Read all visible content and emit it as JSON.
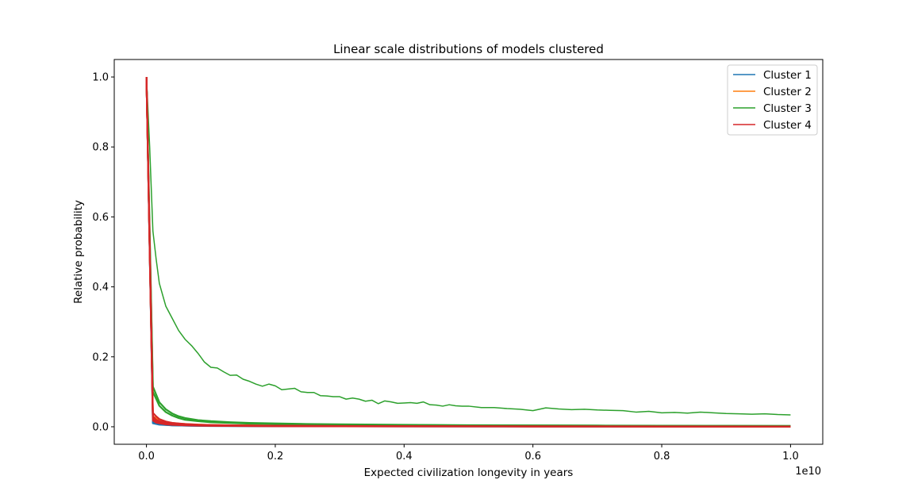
{
  "chart_data": {
    "type": "line",
    "title": "Linear scale distributions of models clustered",
    "xlabel": "Expected civilization longevity in years",
    "ylabel": "Relative probability",
    "x_offset_text": "1e10",
    "xlim": [
      -0.05,
      1.05
    ],
    "ylim": [
      -0.05,
      1.05
    ],
    "x_ticks": [
      0.0,
      0.2,
      0.4,
      0.6,
      0.8,
      1.0
    ],
    "x_tick_labels": [
      "0.0",
      "0.2",
      "0.4",
      "0.6",
      "0.8",
      "1.0"
    ],
    "y_ticks": [
      0.0,
      0.2,
      0.4,
      0.6,
      0.8,
      1.0
    ],
    "y_tick_labels": [
      "0.0",
      "0.2",
      "0.4",
      "0.6",
      "0.8",
      "1.0"
    ],
    "grid": false,
    "legend_position": "top-right",
    "x_unit_scale": 10000000000,
    "series": [
      {
        "name": "Cluster 1",
        "color": "#1f77b4",
        "lines": [
          {
            "x": [
              0,
              0.01,
              0.02,
              0.04,
              0.07,
              0.1,
              0.2,
              0.4,
              0.7,
              1.0
            ],
            "y": [
              1.0,
              0.01,
              0.006,
              0.004,
              0.003,
              0.002,
              0.0015,
              0.001,
              0.0008,
              0.0007
            ]
          },
          {
            "x": [
              0,
              0.01,
              0.02,
              0.04,
              0.07,
              0.1,
              0.2,
              0.4,
              0.7,
              1.0
            ],
            "y": [
              1.0,
              0.012,
              0.007,
              0.004,
              0.003,
              0.0025,
              0.0018,
              0.0012,
              0.0009,
              0.0008
            ]
          }
        ]
      },
      {
        "name": "Cluster 2",
        "color": "#ff7f0e",
        "lines": [
          {
            "x": [
              0,
              0.01,
              0.02,
              0.03,
              0.05,
              0.07,
              0.1,
              0.15,
              0.2,
              0.3,
              0.4,
              0.6,
              0.8,
              1.0
            ],
            "y": [
              1.0,
              0.03,
              0.018,
              0.013,
              0.009,
              0.007,
              0.005,
              0.004,
              0.003,
              0.0025,
              0.002,
              0.0015,
              0.0012,
              0.001
            ]
          },
          {
            "x": [
              0,
              0.01,
              0.02,
              0.03,
              0.05,
              0.07,
              0.1,
              0.15,
              0.2,
              0.3,
              0.4,
              0.6,
              0.8,
              1.0
            ],
            "y": [
              1.0,
              0.025,
              0.015,
              0.011,
              0.008,
              0.006,
              0.0045,
              0.0035,
              0.003,
              0.002,
              0.0018,
              0.0013,
              0.0011,
              0.0009
            ]
          }
        ]
      },
      {
        "name": "Cluster 3",
        "color": "#2ca02c",
        "lines": [
          {
            "x": [
              0,
              0.005,
              0.01,
              0.015,
              0.02,
              0.03,
              0.04,
              0.05,
              0.06,
              0.07,
              0.08,
              0.09,
              0.1,
              0.11,
              0.12,
              0.13,
              0.14,
              0.15,
              0.16,
              0.17,
              0.18,
              0.19,
              0.2,
              0.21,
              0.22,
              0.23,
              0.24,
              0.25,
              0.26,
              0.27,
              0.28,
              0.29,
              0.3,
              0.31,
              0.32,
              0.33,
              0.34,
              0.35,
              0.36,
              0.37,
              0.38,
              0.39,
              0.4,
              0.41,
              0.42,
              0.43,
              0.44,
              0.45,
              0.46,
              0.47,
              0.48,
              0.49,
              0.5,
              0.52,
              0.54,
              0.56,
              0.58,
              0.6,
              0.62,
              0.64,
              0.66,
              0.68,
              0.7,
              0.72,
              0.74,
              0.76,
              0.78,
              0.8,
              0.82,
              0.84,
              0.86,
              0.88,
              0.9,
              0.92,
              0.94,
              0.96,
              0.98,
              1.0
            ],
            "y": [
              1.0,
              0.8,
              0.56,
              0.48,
              0.41,
              0.345,
              0.31,
              0.275,
              0.25,
              0.232,
              0.21,
              0.185,
              0.17,
              0.168,
              0.157,
              0.147,
              0.148,
              0.136,
              0.13,
              0.122,
              0.116,
              0.122,
              0.117,
              0.106,
              0.108,
              0.11,
              0.1,
              0.098,
              0.098,
              0.089,
              0.088,
              0.086,
              0.086,
              0.079,
              0.082,
              0.079,
              0.073,
              0.076,
              0.066,
              0.074,
              0.071,
              0.067,
              0.068,
              0.069,
              0.067,
              0.071,
              0.063,
              0.062,
              0.059,
              0.063,
              0.06,
              0.059,
              0.059,
              0.055,
              0.055,
              0.052,
              0.05,
              0.046,
              0.054,
              0.051,
              0.049,
              0.05,
              0.048,
              0.047,
              0.046,
              0.042,
              0.044,
              0.04,
              0.041,
              0.039,
              0.042,
              0.04,
              0.038,
              0.037,
              0.036,
              0.037,
              0.035,
              0.034
            ]
          },
          {
            "x": [
              0,
              0.01,
              0.02,
              0.03,
              0.04,
              0.05,
              0.06,
              0.08,
              0.1,
              0.13,
              0.16,
              0.2,
              0.25,
              0.3,
              0.4,
              0.5,
              0.6,
              0.7,
              0.8,
              0.9,
              1.0
            ],
            "y": [
              1.0,
              0.115,
              0.07,
              0.05,
              0.038,
              0.03,
              0.025,
              0.019,
              0.016,
              0.013,
              0.011,
              0.0095,
              0.008,
              0.007,
              0.0055,
              0.0045,
              0.004,
              0.0035,
              0.003,
              0.0028,
              0.0025
            ]
          },
          {
            "x": [
              0,
              0.01,
              0.02,
              0.03,
              0.04,
              0.05,
              0.06,
              0.08,
              0.1,
              0.13,
              0.16,
              0.2,
              0.25,
              0.3,
              0.4,
              0.5,
              0.6,
              0.7,
              0.8,
              0.9,
              1.0
            ],
            "y": [
              1.0,
              0.1,
              0.06,
              0.042,
              0.032,
              0.025,
              0.02,
              0.016,
              0.013,
              0.011,
              0.009,
              0.008,
              0.007,
              0.006,
              0.005,
              0.004,
              0.0035,
              0.003,
              0.0027,
              0.0024,
              0.0022
            ]
          }
        ]
      },
      {
        "name": "Cluster 4",
        "color": "#d62728",
        "lines": [
          {
            "x": [
              0,
              0.01,
              0.015,
              0.02,
              0.03,
              0.04,
              0.06,
              0.08,
              0.1,
              0.15,
              0.2,
              0.3,
              0.4,
              0.6,
              0.8,
              1.0
            ],
            "y": [
              1.0,
              0.04,
              0.03,
              0.022,
              0.015,
              0.011,
              0.008,
              0.006,
              0.005,
              0.0035,
              0.003,
              0.0022,
              0.0018,
              0.0013,
              0.001,
              0.0009
            ]
          },
          {
            "x": [
              0,
              0.01,
              0.015,
              0.02,
              0.03,
              0.04,
              0.06,
              0.08,
              0.1,
              0.15,
              0.2,
              0.3,
              0.4,
              0.6,
              0.8,
              1.0
            ],
            "y": [
              1.0,
              0.03,
              0.02,
              0.016,
              0.012,
              0.009,
              0.0065,
              0.005,
              0.004,
              0.003,
              0.0025,
              0.0018,
              0.0015,
              0.0011,
              0.0009,
              0.0008
            ]
          },
          {
            "x": [
              0,
              0.01,
              0.015,
              0.02,
              0.03,
              0.04,
              0.06,
              0.08,
              0.1,
              0.15,
              0.2,
              0.3,
              0.4,
              0.6,
              0.8,
              1.0
            ],
            "y": [
              1.0,
              0.022,
              0.015,
              0.012,
              0.009,
              0.007,
              0.005,
              0.004,
              0.0032,
              0.0025,
              0.002,
              0.0015,
              0.0012,
              0.0009,
              0.0008,
              0.0007
            ]
          },
          {
            "x": [
              0,
              0.01,
              0.015,
              0.02,
              0.03,
              0.04,
              0.06,
              0.08,
              0.1,
              0.15,
              0.2,
              0.3,
              0.4,
              0.6,
              0.8,
              1.0
            ],
            "y": [
              1.0,
              0.018,
              0.012,
              0.01,
              0.007,
              0.0055,
              0.004,
              0.0032,
              0.0027,
              0.002,
              0.0016,
              0.0012,
              0.001,
              0.0008,
              0.0007,
              0.0006
            ]
          }
        ]
      }
    ]
  }
}
